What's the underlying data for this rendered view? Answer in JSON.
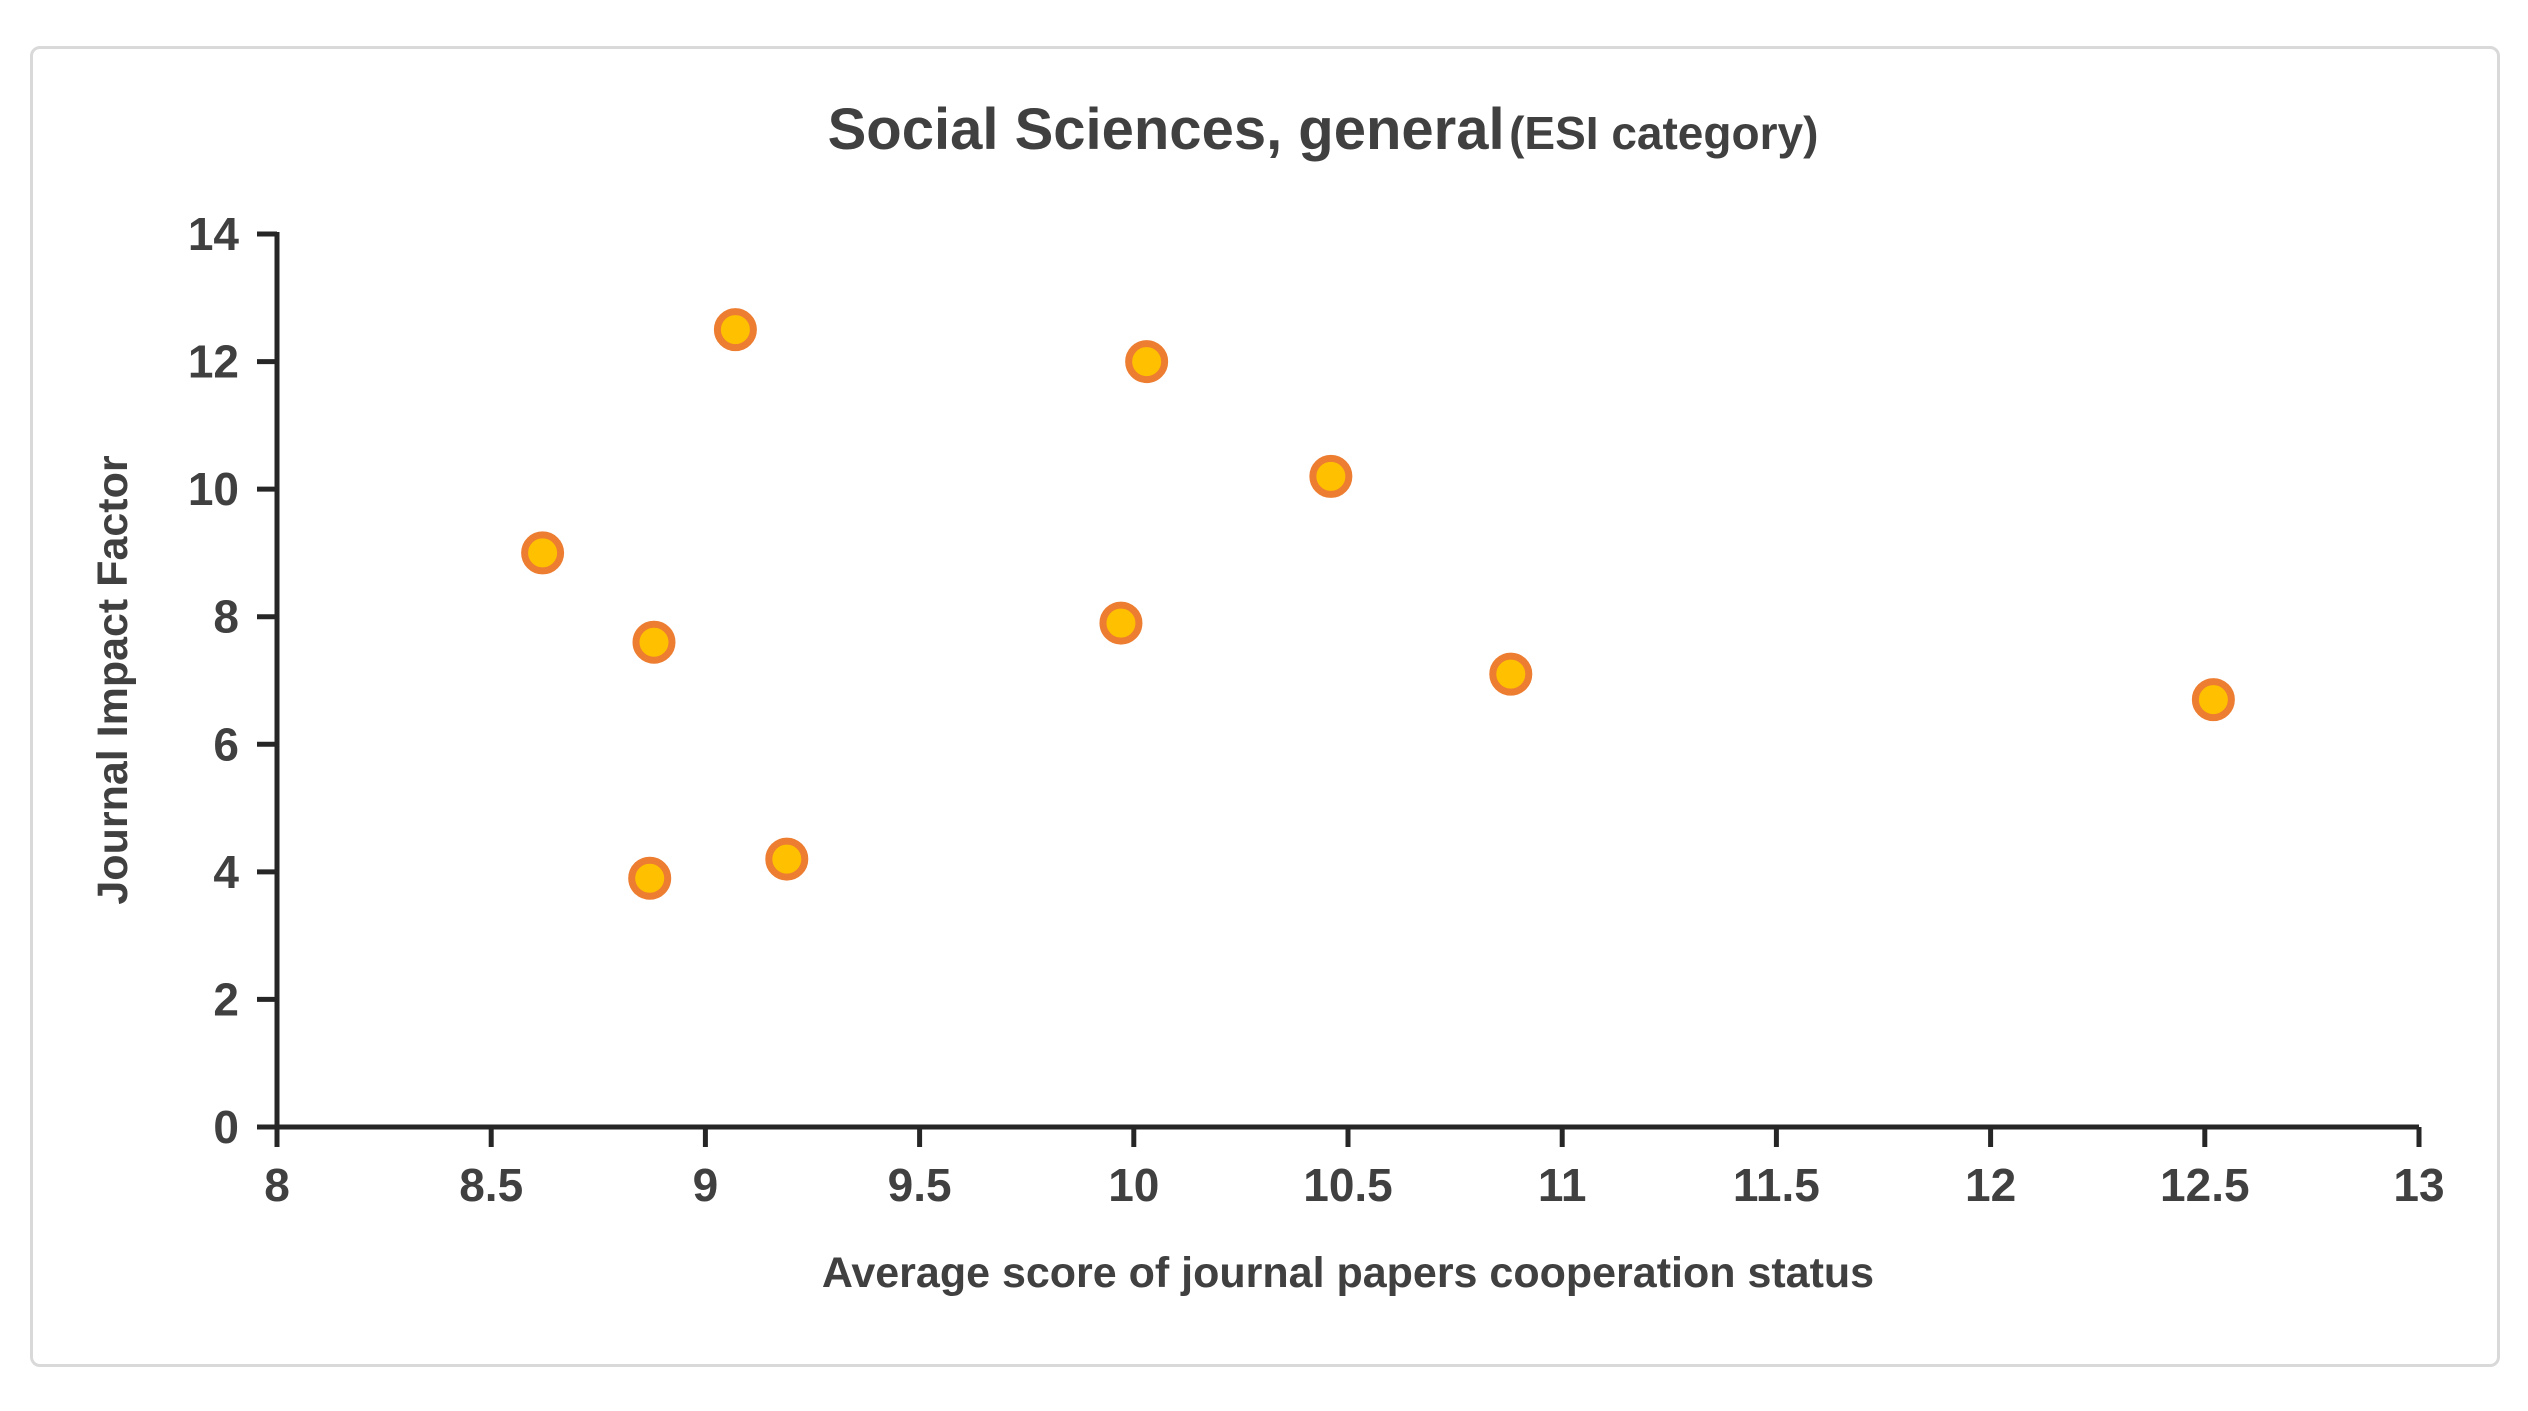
{
  "chart_data": {
    "type": "scatter",
    "title": "Social Sciences, general",
    "title_suffix": "(ESI category)",
    "xlabel": "Average score of journal papers cooperation status",
    "ylabel": "Journal Impact Factor",
    "xlim": [
      8,
      13
    ],
    "ylim": [
      0,
      14
    ],
    "x_ticks": [
      8,
      8.5,
      9,
      9.5,
      10,
      10.5,
      11,
      11.5,
      12,
      12.5,
      13
    ],
    "y_ticks": [
      0,
      2,
      4,
      6,
      8,
      10,
      12,
      14
    ],
    "grid": false,
    "legend": "none",
    "points": [
      [
        8.62,
        9.0
      ],
      [
        8.87,
        3.9
      ],
      [
        8.88,
        7.6
      ],
      [
        9.07,
        12.5
      ],
      [
        9.19,
        4.2
      ],
      [
        9.97,
        7.9
      ],
      [
        10.03,
        12.0
      ],
      [
        10.46,
        10.2
      ],
      [
        10.88,
        7.1
      ],
      [
        12.52,
        6.7
      ]
    ],
    "colors": {
      "marker_fill": "#FFC000",
      "marker_stroke": "#ED7D31",
      "axis": "#262626",
      "text": "#404040",
      "frame_border": "#D9D9D9",
      "background": "#FFFFFF"
    }
  }
}
